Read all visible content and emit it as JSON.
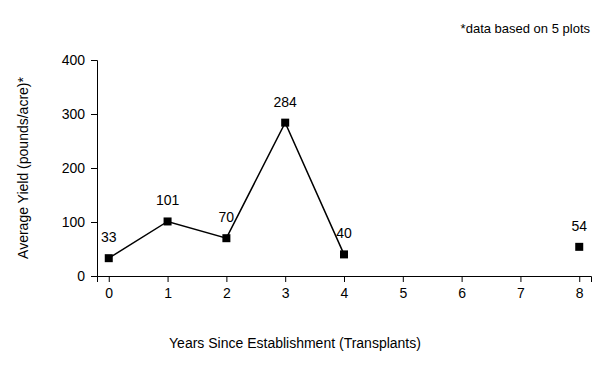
{
  "chart_data": {
    "type": "line",
    "x_label": "Years Since Establishment (Transplants)",
    "y_label": "Average Yield (pounds/acre)*",
    "annotation": "*data based on 5 plots",
    "x": [
      0,
      1,
      2,
      3,
      4,
      5,
      8
    ],
    "values": [
      33,
      101,
      70,
      284,
      40,
      null,
      54
    ],
    "color": "#000000",
    "marker": "square",
    "line_style": "solid",
    "data_labels": true,
    "xlim": [
      -0.2,
      8.2
    ],
    "xticks": [
      0,
      1,
      2,
      3,
      4,
      5,
      6,
      7,
      8
    ],
    "ylim": [
      0,
      400
    ],
    "yticks": [
      0,
      100,
      200,
      300,
      400
    ],
    "grid": false
  }
}
